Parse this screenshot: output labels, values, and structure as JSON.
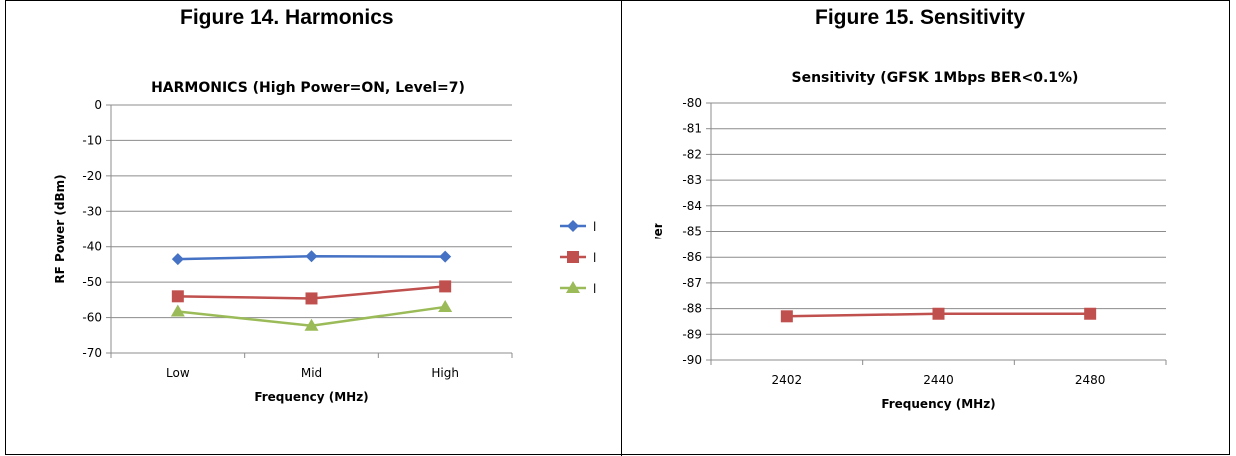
{
  "figures": [
    {
      "caption": "Figure 14. Harmonics"
    },
    {
      "caption": "Figure 15. Sensitivity"
    }
  ],
  "colors": {
    "blue": "#4572c4",
    "red": "#c0504d",
    "green": "#9bbb59",
    "grid": "#888888"
  },
  "chart_data": [
    {
      "type": "line",
      "title": "HARMONICS (High Power=ON, Level=7)",
      "xlabel": "Frequency (MHz)",
      "ylabel": "RF Power (dBm)",
      "categories": [
        "Low",
        "Mid",
        "High"
      ],
      "ylim": [
        -70,
        0
      ],
      "yticks": [
        0,
        -10,
        -20,
        -30,
        -40,
        -50,
        -60,
        -70
      ],
      "grid": true,
      "legend_position": "right",
      "legend_labels_visible": [
        "l",
        "l",
        "l"
      ],
      "series": [
        {
          "values": [
            -43.5,
            -42.7,
            -42.8
          ],
          "color": "#4572c4",
          "marker": "diamond"
        },
        {
          "values": [
            -54.0,
            -54.6,
            -51.2
          ],
          "color": "#c0504d",
          "marker": "square"
        },
        {
          "values": [
            -58.3,
            -62.3,
            -57.0
          ],
          "color": "#9bbb59",
          "marker": "triangle"
        }
      ]
    },
    {
      "type": "line",
      "title": "Sensitivity (GFSK 1Mbps  BER<0.1%)",
      "xlabel": "Frequency (MHz)",
      "ylabel": "RF Power (dBm)",
      "categories": [
        "2402",
        "2440",
        "2480"
      ],
      "ylim": [
        -90,
        -80
      ],
      "yticks": [
        -80,
        -81,
        -82,
        -83,
        -84,
        -85,
        -86,
        -87,
        -88,
        -89,
        -90
      ],
      "grid": true,
      "series": [
        {
          "values": [
            -88.3,
            -88.2,
            -88.2
          ],
          "color": "#c0504d",
          "marker": "square"
        }
      ]
    }
  ]
}
